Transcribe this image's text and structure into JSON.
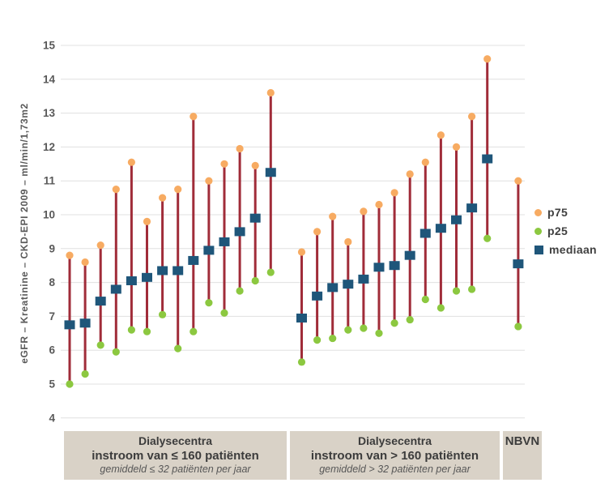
{
  "y_axis_title": "eGFR – Kreatinine – CKD-EPI 2009 – ml/min/1,73m2",
  "legend": {
    "items": [
      {
        "label": "p75",
        "shape": "circle",
        "color": "#F7AB62"
      },
      {
        "label": "p25",
        "shape": "circle",
        "color": "#8CC840"
      },
      {
        "label": "mediaan",
        "shape": "square",
        "color": "#1F567A"
      }
    ]
  },
  "colors": {
    "range_line": "#A02C39",
    "p75_dot": "#F7AB62",
    "p25_dot": "#8CC840",
    "median_square": "#1F567A",
    "gridline": "#E0E0E0",
    "tick_text": "#595959",
    "group_box_bg": "#D9D2C7"
  },
  "chart_data": {
    "type": "scatter",
    "subtype": "high-low range plot (p25–p75 with median)",
    "ylabel": "eGFR – Kreatinine – CKD-EPI 2009 – ml/min/1,73m2",
    "ylim": [
      4,
      15
    ],
    "yticks": [
      15,
      14,
      13,
      12,
      11,
      10,
      9,
      8,
      7,
      6,
      5,
      4
    ],
    "grid": true,
    "legend_position": "right",
    "series_names": [
      "p75",
      "p25",
      "mediaan"
    ],
    "groups": [
      {
        "label_lines": [
          "Dialysecentra",
          "instroom van ≤ 160 patiënten",
          "gemiddeld ≤ 32 patiënten per jaar"
        ],
        "points": [
          {
            "p75": 8.8,
            "p25": 5.0,
            "mediaan": 6.75
          },
          {
            "p75": 8.6,
            "p25": 5.3,
            "mediaan": 6.8
          },
          {
            "p75": 9.1,
            "p25": 6.15,
            "mediaan": 7.45
          },
          {
            "p75": 10.75,
            "p25": 5.95,
            "mediaan": 7.8
          },
          {
            "p75": 11.55,
            "p25": 6.6,
            "mediaan": 8.05
          },
          {
            "p75": 9.8,
            "p25": 6.55,
            "mediaan": 8.15
          },
          {
            "p75": 10.5,
            "p25": 7.05,
            "mediaan": 8.35
          },
          {
            "p75": 10.75,
            "p25": 6.05,
            "mediaan": 8.35
          },
          {
            "p75": 12.9,
            "p25": 6.55,
            "mediaan": 8.65
          },
          {
            "p75": 11.0,
            "p25": 7.4,
            "mediaan": 8.95
          },
          {
            "p75": 11.5,
            "p25": 7.1,
            "mediaan": 9.2
          },
          {
            "p75": 11.95,
            "p25": 7.75,
            "mediaan": 9.5
          },
          {
            "p75": 11.45,
            "p25": 8.05,
            "mediaan": 9.9
          },
          {
            "p75": 13.6,
            "p25": 8.3,
            "mediaan": 11.25
          }
        ]
      },
      {
        "label_lines": [
          "Dialysecentra",
          "instroom van > 160 patiënten",
          "gemiddeld  > 32 patiënten per jaar"
        ],
        "points": [
          {
            "p75": 8.9,
            "p25": 5.65,
            "mediaan": 6.95
          },
          {
            "p75": 9.5,
            "p25": 6.3,
            "mediaan": 7.6
          },
          {
            "p75": 9.95,
            "p25": 6.35,
            "mediaan": 7.85
          },
          {
            "p75": 9.2,
            "p25": 6.6,
            "mediaan": 7.95
          },
          {
            "p75": 10.1,
            "p25": 6.65,
            "mediaan": 8.1
          },
          {
            "p75": 10.3,
            "p25": 6.5,
            "mediaan": 8.45
          },
          {
            "p75": 10.65,
            "p25": 6.8,
            "mediaan": 8.5
          },
          {
            "p75": 11.2,
            "p25": 6.9,
            "mediaan": 8.8
          },
          {
            "p75": 11.55,
            "p25": 7.5,
            "mediaan": 9.45
          },
          {
            "p75": 12.35,
            "p25": 7.25,
            "mediaan": 9.6
          },
          {
            "p75": 12.0,
            "p25": 7.75,
            "mediaan": 9.85
          },
          {
            "p75": 12.9,
            "p25": 7.8,
            "mediaan": 10.2
          },
          {
            "p75": 14.6,
            "p25": 9.3,
            "mediaan": 11.65
          }
        ]
      },
      {
        "label_lines": [
          "NBVN"
        ],
        "points": [
          {
            "p75": 11.0,
            "p25": 6.7,
            "mediaan": 8.55
          }
        ]
      }
    ]
  }
}
